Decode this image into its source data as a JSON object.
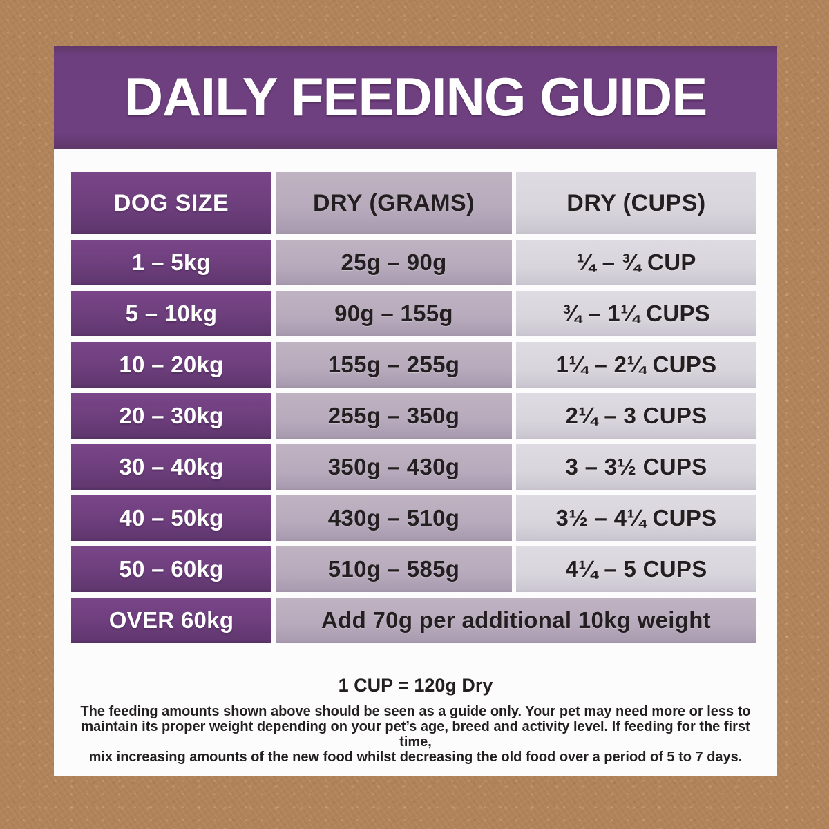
{
  "header": {
    "title": "DAILY FEEDING GUIDE"
  },
  "table": {
    "columns": [
      "DOG SIZE",
      "DRY (GRAMS)",
      "DRY (CUPS)"
    ],
    "rows": [
      {
        "size": "1 – 5kg",
        "grams": "25g – 90g",
        "cups": "¼ – ¾ CUP"
      },
      {
        "size": "5 – 10kg",
        "grams": "90g – 155g",
        "cups": "¾ – 1¼ CUPS"
      },
      {
        "size": "10 – 20kg",
        "grams": "155g – 255g",
        "cups": "1¼ – 2¼ CUPS"
      },
      {
        "size": "20 – 30kg",
        "grams": "255g – 350g",
        "cups": "2¼ – 3 CUPS"
      },
      {
        "size": "30 – 40kg",
        "grams": "350g – 430g",
        "cups": "3 – 3½ CUPS"
      },
      {
        "size": "40 – 50kg",
        "grams": "430g – 510g",
        "cups": "3½ – 4¼ CUPS"
      },
      {
        "size": "50 – 60kg",
        "grams": "510g – 585g",
        "cups": "4¼ – 5 CUPS"
      }
    ],
    "last_row": {
      "size": "OVER 60kg",
      "note": "Add 70g per additional 10kg weight"
    }
  },
  "footer": {
    "cup_note": "1 CUP = 120g Dry",
    "disclaimer_lines": [
      "The feeding amounts shown above should be seen as a guide only. Your pet may need more or less to",
      "maintain its proper weight depending on your pet’s age, breed and activity level. If feeding for the first time,",
      "mix increasing amounts of the new food whilst decreasing the old food over a period of 5 to 7 days."
    ]
  },
  "colors": {
    "background_tan": "#b1835a",
    "card_white": "#fdfcfd",
    "brand_purple": "#6e3f7e",
    "mid_lavender": "#b7aabc",
    "light_lavender": "#d8d5dc",
    "text_dark": "#231f20",
    "text_white": "#ffffff"
  }
}
